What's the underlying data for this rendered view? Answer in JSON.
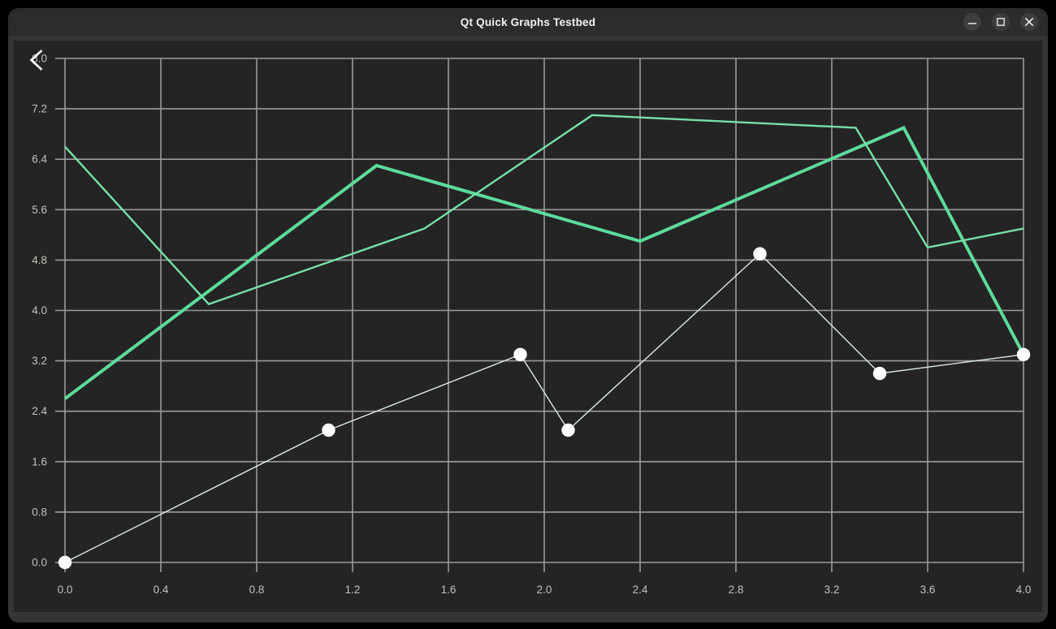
{
  "window": {
    "title": "Qt Quick Graphs Testbed",
    "controls": {
      "minimize_icon": "minimize-dash",
      "maximize_icon": "maximize-square",
      "close_icon": "close-x"
    },
    "back_button_icon": "chevron-left"
  },
  "colors": {
    "page_background": "#000000",
    "window_frame": "#353535",
    "titlebar_background": "#2c2c2c",
    "titlebar_text": "#f2f2f2",
    "control_button_background": "#3e3e3e",
    "control_glyph": "#e8e8e8",
    "plot_background": "#242424",
    "grid_line": "#9b9b9b",
    "tick_label": "#c6c2bb",
    "back_icon": "#ffffff"
  },
  "chart_data": {
    "type": "line",
    "title": "",
    "xlabel": "",
    "ylabel": "",
    "xlim": [
      0.0,
      4.0
    ],
    "ylim": [
      0.0,
      8.0
    ],
    "x_ticks": [
      0.0,
      0.4,
      0.8,
      1.2,
      1.6,
      2.0,
      2.4,
      2.8,
      3.2,
      3.6,
      4.0
    ],
    "y_ticks": [
      0.0,
      0.8,
      1.6,
      2.4,
      3.2,
      4.0,
      4.8,
      5.6,
      6.4,
      7.2,
      8.0
    ],
    "tick_label_decimals": 1,
    "grid": true,
    "legend": "none",
    "series": [
      {
        "name": "thick-green-line",
        "type": "line",
        "color": "#5ddb9b",
        "line_width": 4,
        "points": [
          [
            0.0,
            2.6
          ],
          [
            1.3,
            6.3
          ],
          [
            2.4,
            5.1
          ],
          [
            3.5,
            6.9
          ],
          [
            4.0,
            3.3
          ]
        ]
      },
      {
        "name": "thin-green-line",
        "type": "line",
        "color": "#77e0a7",
        "line_width": 2.4,
        "points": [
          [
            0.0,
            6.6
          ],
          [
            0.6,
            4.1
          ],
          [
            1.5,
            5.3
          ],
          [
            2.2,
            7.1
          ],
          [
            3.3,
            6.9
          ],
          [
            3.6,
            5.0
          ],
          [
            4.0,
            5.3
          ]
        ]
      },
      {
        "name": "white-scatter-series",
        "type": "scatter-line",
        "color": "#dcece3",
        "line_width": 1.4,
        "marker_color": "#ffffff",
        "marker_radius": 8.2,
        "points": [
          [
            0.0,
            0.0
          ],
          [
            1.1,
            2.1
          ],
          [
            1.9,
            3.3
          ],
          [
            2.1,
            2.1
          ],
          [
            2.9,
            4.9
          ],
          [
            3.4,
            3.0
          ],
          [
            4.0,
            3.3
          ]
        ]
      }
    ]
  }
}
